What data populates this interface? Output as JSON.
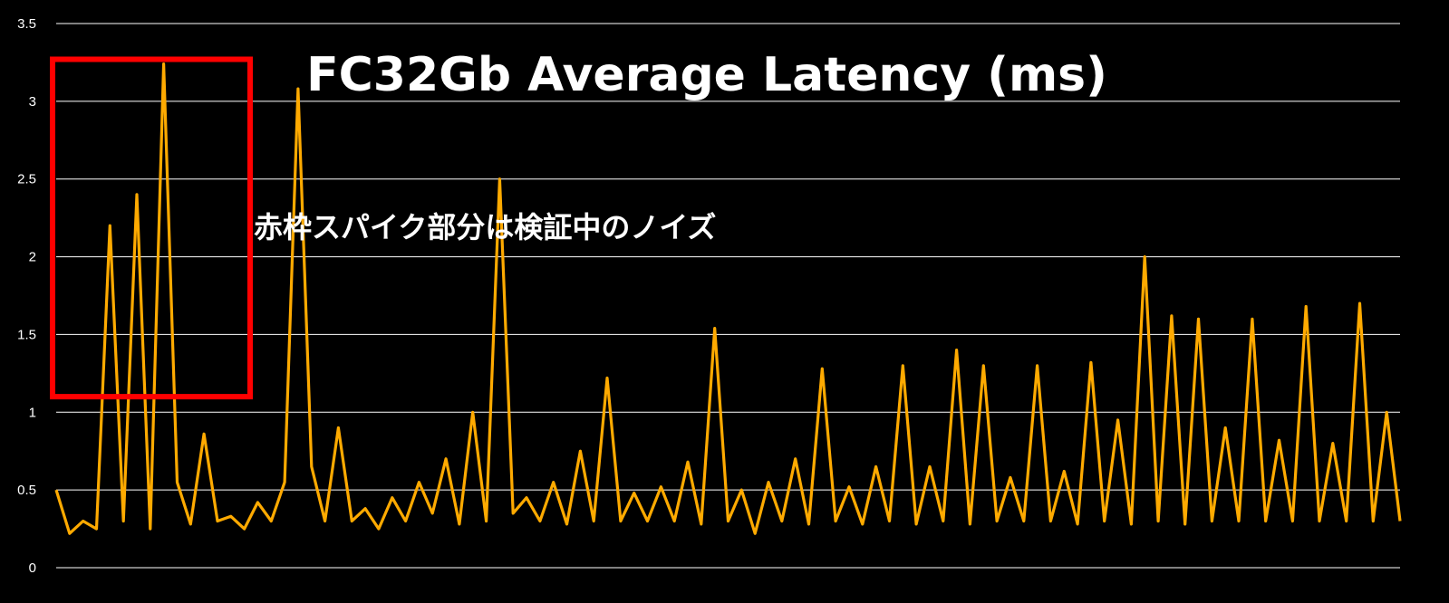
{
  "chart_data": {
    "type": "line",
    "title": "FC32Gb Average Latency (ms)",
    "annotation": "赤枠スパイク部分は検証中のノイズ",
    "ylim": [
      0,
      3.5
    ],
    "y_ticks": [
      "0",
      "0.5",
      "1",
      "1.5",
      "2",
      "2.5",
      "3",
      "3.5"
    ],
    "grid": true,
    "highlight_box": {
      "y_range": [
        1.1,
        3.27
      ],
      "color": "#ff0000",
      "note": "noise spikes"
    },
    "colors": {
      "background": "#000000",
      "line": "#ffaa00",
      "grid": "#ffffff",
      "box": "#ff0000"
    },
    "series": [
      {
        "x": [
          0,
          1,
          2,
          3,
          4,
          5,
          6,
          7,
          8,
          9,
          10,
          11,
          12,
          13,
          14,
          15,
          16,
          17,
          18,
          19,
          20,
          21,
          22,
          23,
          24,
          25,
          26,
          27,
          28,
          29,
          30,
          31,
          32,
          33,
          34,
          35,
          36,
          37,
          38,
          39,
          40,
          41,
          42,
          43,
          44,
          45,
          46,
          47,
          48,
          49,
          50,
          51,
          52,
          53,
          54,
          55,
          56,
          57,
          58,
          59,
          60,
          61,
          62,
          63,
          64,
          65,
          66,
          67,
          68,
          69,
          70,
          71,
          72,
          73,
          74,
          75,
          76,
          77,
          78,
          79,
          80,
          81,
          82,
          83,
          84,
          85,
          86,
          87,
          88,
          89,
          90,
          91,
          92,
          93,
          94,
          95,
          96,
          97,
          98,
          99,
          100
        ],
        "values": [
          0.5,
          0.22,
          0.3,
          0.25,
          2.2,
          0.3,
          2.4,
          0.25,
          3.24,
          0.55,
          0.28,
          0.86,
          0.3,
          0.33,
          0.25,
          0.42,
          0.3,
          0.55,
          3.08,
          0.65,
          0.3,
          0.9,
          0.3,
          0.38,
          0.25,
          0.45,
          0.3,
          0.55,
          0.35,
          0.7,
          0.28,
          1.0,
          0.3,
          2.5,
          0.35,
          0.45,
          0.3,
          0.55,
          0.28,
          0.75,
          0.3,
          1.22,
          0.3,
          0.48,
          0.3,
          0.52,
          0.3,
          0.68,
          0.28,
          1.54,
          0.3,
          0.5,
          0.22,
          0.55,
          0.3,
          0.7,
          0.28,
          1.28,
          0.3,
          0.52,
          0.28,
          0.65,
          0.3,
          1.3,
          0.28,
          0.65,
          0.3,
          1.4,
          0.28,
          1.3,
          0.3,
          0.58,
          0.3,
          1.3,
          0.3,
          0.62,
          0.28,
          1.32,
          0.3,
          0.95,
          0.28,
          2.0,
          0.3,
          1.62,
          0.28,
          1.6,
          0.3,
          0.9,
          0.3,
          1.6,
          0.3,
          0.82,
          0.3,
          1.68,
          0.3,
          0.8,
          0.3,
          1.7,
          0.3,
          1.0,
          0.3
        ]
      }
    ]
  }
}
